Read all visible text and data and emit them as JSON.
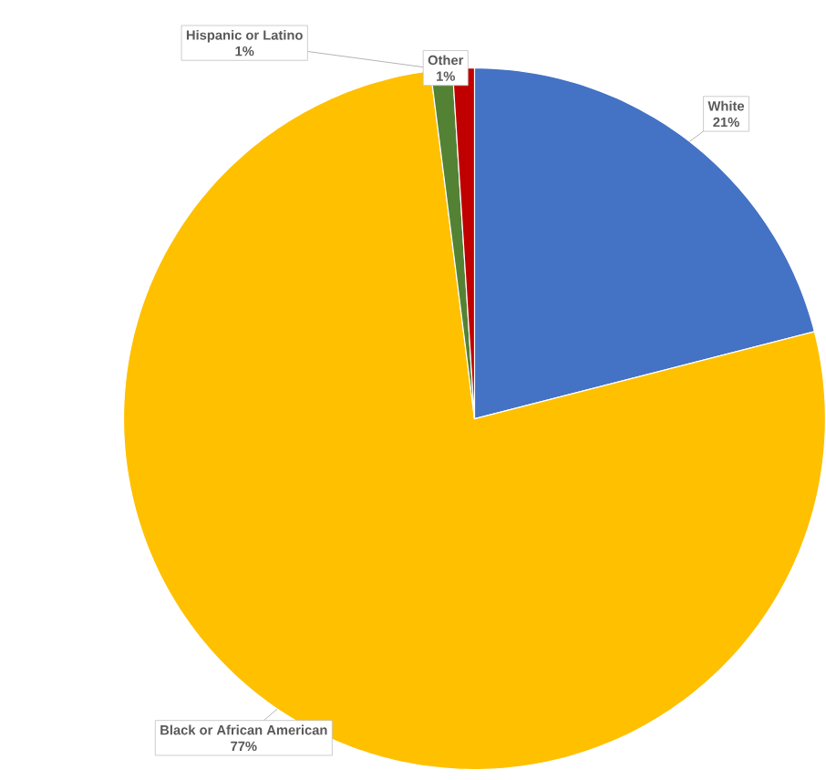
{
  "chart_data": {
    "type": "pie",
    "categories": [
      "White",
      "Black or African American",
      "Hispanic or Latino",
      "Other"
    ],
    "values": [
      21,
      77,
      1,
      1
    ],
    "colors": [
      "#4472c4",
      "#ffc000",
      "#548235",
      "#c00000"
    ],
    "value_labels": [
      "21%",
      "77%",
      "1%",
      "1%"
    ]
  }
}
